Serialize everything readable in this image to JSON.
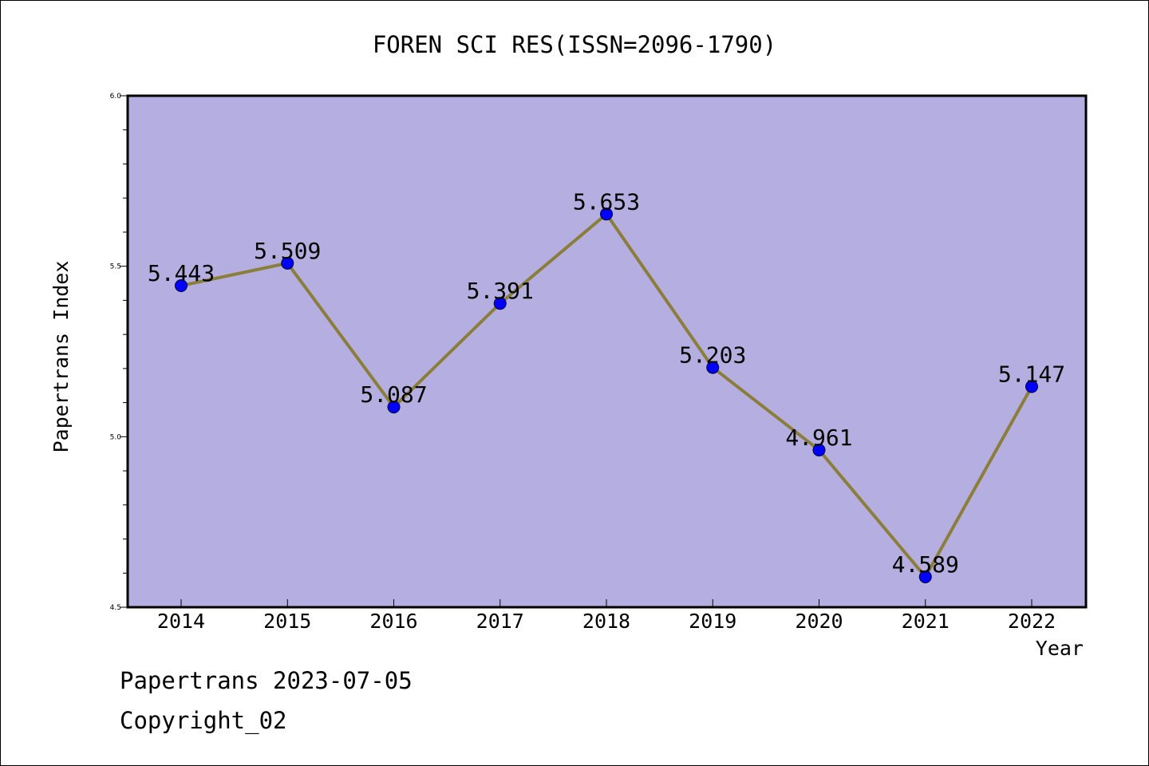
{
  "chart_data": {
    "type": "line",
    "title": "FOREN SCI RES(ISSN=2096-1790)",
    "xlabel": "Year",
    "ylabel": "Papertrans Index",
    "categories": [
      "2014",
      "2015",
      "2016",
      "2017",
      "2018",
      "2019",
      "2020",
      "2021",
      "2022"
    ],
    "series": [
      {
        "values": [
          5.443,
          5.509,
          5.087,
          5.391,
          5.653,
          5.203,
          4.961,
          4.589,
          5.147
        ],
        "labels": [
          "5.443",
          "5.509",
          "5.087",
          "5.391",
          "5.653",
          "5.203",
          "4.961",
          "4.589",
          "5.147"
        ]
      }
    ],
    "ylim": [
      4.5,
      6.0
    ],
    "yticks": [
      "4.5",
      "5.0",
      "5.5",
      "6.0"
    ],
    "grid": false,
    "colors": {
      "plot_background": "#b5afe1",
      "line": "#8b7d3a",
      "marker": "#0000ff"
    }
  },
  "footer": {
    "date_text": "Papertrans 2023-07-05",
    "copyright_text": "Copyright_02"
  }
}
